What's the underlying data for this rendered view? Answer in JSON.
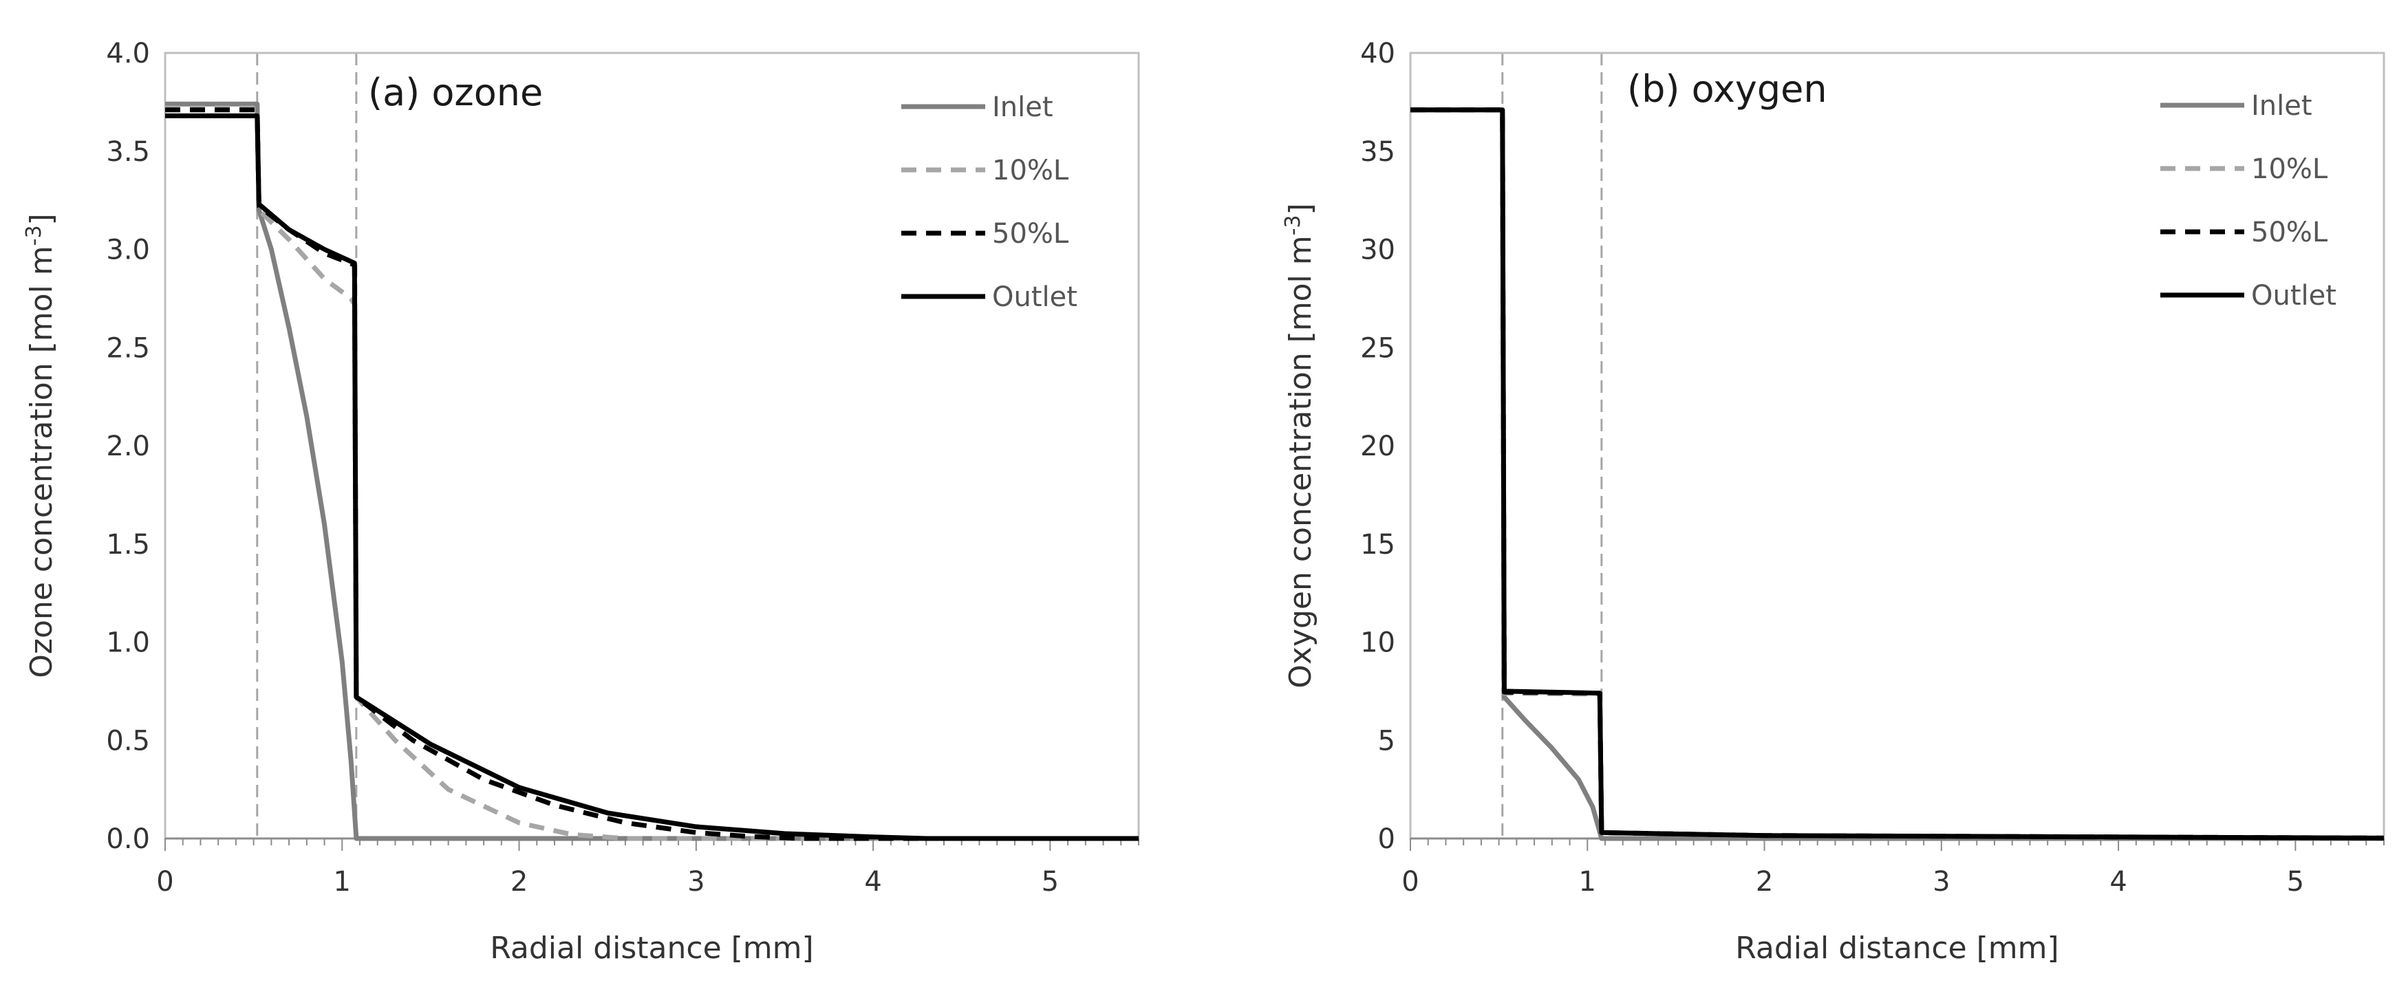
{
  "chart_data": [
    {
      "type": "line",
      "title": "(a) ozone",
      "xlabel": "Radial distance [mm]",
      "ylabel": "Ozone concentration [mol m-3]",
      "ylabel_main": "Ozone concentration [mol m",
      "ylabel_sup": "-3",
      "ylabel_end": "]",
      "xlim": [
        0,
        5.5
      ],
      "ylim": [
        0,
        4.0
      ],
      "x_ticks": [
        0,
        1,
        2,
        3,
        4,
        5
      ],
      "y_ticks": [
        0.0,
        0.5,
        1.0,
        1.5,
        2.0,
        2.5,
        3.0,
        3.5,
        4.0
      ],
      "x_tick_labels": [
        "0",
        "1",
        "2",
        "3",
        "4",
        "5"
      ],
      "y_tick_labels": [
        "0.0",
        "0.5",
        "1.0",
        "1.5",
        "2.0",
        "2.5",
        "3.0",
        "3.5",
        "4.0"
      ],
      "grid": false,
      "legend": "top-right",
      "reference_lines_x": [
        0.52,
        1.08
      ],
      "series": [
        {
          "name": "Inlet",
          "color": "#808080",
          "style": "solid",
          "points": [
            [
              0,
              3.74
            ],
            [
              0.52,
              3.74
            ],
            [
              0.53,
              3.2
            ],
            [
              0.6,
              3.0
            ],
            [
              0.7,
              2.6
            ],
            [
              0.8,
              2.15
            ],
            [
              0.9,
              1.6
            ],
            [
              1.0,
              0.9
            ],
            [
              1.05,
              0.4
            ],
            [
              1.08,
              0.0
            ],
            [
              5.5,
              0.0
            ]
          ]
        },
        {
          "name": "10%L",
          "color": "#a6a6a6",
          "style": "dash",
          "points": [
            [
              0,
              3.72
            ],
            [
              0.52,
              3.72
            ],
            [
              0.53,
              3.2
            ],
            [
              0.7,
              3.05
            ],
            [
              0.9,
              2.85
            ],
            [
              1.05,
              2.75
            ],
            [
              1.07,
              2.72
            ],
            [
              1.08,
              0.72
            ],
            [
              1.3,
              0.5
            ],
            [
              1.6,
              0.25
            ],
            [
              2.0,
              0.08
            ],
            [
              2.3,
              0.02
            ],
            [
              2.6,
              0.0
            ],
            [
              5.5,
              0.0
            ]
          ]
        },
        {
          "name": "50%L",
          "color": "#000000",
          "style": "dash",
          "points": [
            [
              0,
              3.71
            ],
            [
              0.52,
              3.71
            ],
            [
              0.53,
              3.22
            ],
            [
              0.7,
              3.1
            ],
            [
              0.9,
              2.98
            ],
            [
              1.07,
              2.92
            ],
            [
              1.08,
              0.72
            ],
            [
              1.4,
              0.5
            ],
            [
              1.8,
              0.3
            ],
            [
              2.2,
              0.17
            ],
            [
              2.6,
              0.08
            ],
            [
              3.0,
              0.03
            ],
            [
              3.3,
              0.01
            ],
            [
              3.6,
              0.0
            ],
            [
              5.5,
              0.0
            ]
          ]
        },
        {
          "name": "Outlet",
          "color": "#000000",
          "style": "solid",
          "points": [
            [
              0,
              3.68
            ],
            [
              0.52,
              3.68
            ],
            [
              0.53,
              3.23
            ],
            [
              0.7,
              3.1
            ],
            [
              0.9,
              3.0
            ],
            [
              1.07,
              2.93
            ],
            [
              1.08,
              0.72
            ],
            [
              1.5,
              0.48
            ],
            [
              2.0,
              0.26
            ],
            [
              2.5,
              0.13
            ],
            [
              3.0,
              0.06
            ],
            [
              3.5,
              0.025
            ],
            [
              4.0,
              0.008
            ],
            [
              4.3,
              0.0
            ],
            [
              5.5,
              0.0
            ]
          ]
        }
      ]
    },
    {
      "type": "line",
      "title": "(b) oxygen",
      "xlabel": "Radial distance [mm]",
      "ylabel": "Oxygen concentration [mol m-3]",
      "ylabel_main": "Oxygen concentration [mol m",
      "ylabel_sup": "-3",
      "ylabel_end": "]",
      "xlim": [
        0,
        5.5
      ],
      "ylim": [
        0,
        40
      ],
      "x_ticks": [
        0,
        1,
        2,
        3,
        4,
        5
      ],
      "y_ticks": [
        0,
        5,
        10,
        15,
        20,
        25,
        30,
        35,
        40
      ],
      "x_tick_labels": [
        "0",
        "1",
        "2",
        "3",
        "4",
        "5"
      ],
      "y_tick_labels": [
        "0",
        "5",
        "10",
        "15",
        "20",
        "25",
        "30",
        "35",
        "40"
      ],
      "grid": false,
      "legend": "top-right",
      "reference_lines_x": [
        0.52,
        1.08
      ],
      "series": [
        {
          "name": "Inlet",
          "color": "#808080",
          "style": "solid",
          "points": [
            [
              0,
              37.1
            ],
            [
              0.52,
              37.1
            ],
            [
              0.53,
              7.2
            ],
            [
              0.65,
              6.0
            ],
            [
              0.8,
              4.6
            ],
            [
              0.95,
              3.0
            ],
            [
              1.03,
              1.6
            ],
            [
              1.08,
              0.0
            ],
            [
              5.5,
              0.0
            ]
          ]
        },
        {
          "name": "10%L",
          "color": "#a6a6a6",
          "style": "dash",
          "points": [
            [
              0,
              37.1
            ],
            [
              0.52,
              37.1
            ],
            [
              0.53,
              7.4
            ],
            [
              1.07,
              7.35
            ],
            [
              1.08,
              0.3
            ],
            [
              2.0,
              0.15
            ],
            [
              5.5,
              0.02
            ]
          ]
        },
        {
          "name": "50%L",
          "color": "#000000",
          "style": "dash",
          "points": [
            [
              0,
              37.1
            ],
            [
              0.52,
              37.1
            ],
            [
              0.53,
              7.45
            ],
            [
              1.07,
              7.4
            ],
            [
              1.08,
              0.3
            ],
            [
              2.0,
              0.15
            ],
            [
              5.5,
              0.02
            ]
          ]
        },
        {
          "name": "Outlet",
          "color": "#000000",
          "style": "solid",
          "points": [
            [
              0,
              37.1
            ],
            [
              0.52,
              37.1
            ],
            [
              0.53,
              7.5
            ],
            [
              1.07,
              7.4
            ],
            [
              1.08,
              0.3
            ],
            [
              2.0,
              0.15
            ],
            [
              5.5,
              0.02
            ]
          ]
        }
      ]
    }
  ]
}
